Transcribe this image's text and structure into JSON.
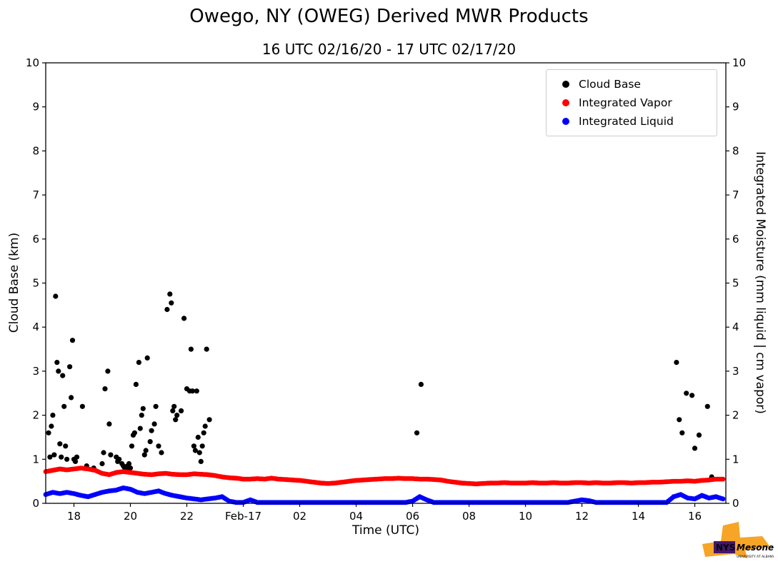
{
  "title": "Owego, NY (OWEG) Derived MWR Products",
  "subtitle": "16 UTC 02/16/20 - 17 UTC 02/17/20",
  "logo": {
    "nys": "NYS",
    "mesonet": "Mesonet",
    "tagline": "UNIVERSITY AT ALBANY",
    "orange": "#f6a01a",
    "purple": "#46166b"
  },
  "chart_data": {
    "type": "scatter",
    "title": "Owego, NY (OWEG) Derived MWR Products",
    "subtitle": "16 UTC 02/16/20 - 17 UTC 02/17/20",
    "xlabel": "Time (UTC)",
    "ylabel_left": "Cloud Base (km)",
    "ylabel_right": "Integrated Moisture (mm liquid | cm vapor)",
    "xlim": [
      17.0,
      41.1
    ],
    "ylim": [
      0,
      10
    ],
    "grid": false,
    "legend_position": "upper right",
    "xticks": [
      {
        "value": 18,
        "label": "18"
      },
      {
        "value": 20,
        "label": "20"
      },
      {
        "value": 22,
        "label": "22"
      },
      {
        "value": 24,
        "label": "Feb-17"
      },
      {
        "value": 26,
        "label": "02"
      },
      {
        "value": 28,
        "label": "04"
      },
      {
        "value": 30,
        "label": "06"
      },
      {
        "value": 32,
        "label": "08"
      },
      {
        "value": 34,
        "label": "10"
      },
      {
        "value": 36,
        "label": "12"
      },
      {
        "value": 38,
        "label": "14"
      },
      {
        "value": 40,
        "label": "16"
      }
    ],
    "yticks": [
      0,
      1,
      2,
      3,
      4,
      5,
      6,
      7,
      8,
      9,
      10
    ],
    "legend": [
      {
        "label": "Cloud Base",
        "color": "#000000"
      },
      {
        "label": "Integrated Vapor",
        "color": "#ff0000"
      },
      {
        "label": "Integrated Liquid",
        "color": "#0000ff"
      }
    ],
    "series": [
      {
        "name": "Cloud Base",
        "color": "#000000",
        "marker_px": 3.6,
        "dense": false,
        "points": [
          [
            17.1,
            1.6
          ],
          [
            17.15,
            1.05
          ],
          [
            17.2,
            1.75
          ],
          [
            17.25,
            2.0
          ],
          [
            17.3,
            1.1
          ],
          [
            17.35,
            4.7
          ],
          [
            17.4,
            3.2
          ],
          [
            17.45,
            3.0
          ],
          [
            17.5,
            1.35
          ],
          [
            17.55,
            1.05
          ],
          [
            17.6,
            2.9
          ],
          [
            17.65,
            2.2
          ],
          [
            17.7,
            1.3
          ],
          [
            17.75,
            1.0
          ],
          [
            17.85,
            3.1
          ],
          [
            17.9,
            2.4
          ],
          [
            17.95,
            3.7
          ],
          [
            18.0,
            1.0
          ],
          [
            18.05,
            0.95
          ],
          [
            18.1,
            1.05
          ],
          [
            18.3,
            2.2
          ],
          [
            18.45,
            0.85
          ],
          [
            18.7,
            0.8
          ],
          [
            19.0,
            0.9
          ],
          [
            19.05,
            1.15
          ],
          [
            19.1,
            2.6
          ],
          [
            19.2,
            3.0
          ],
          [
            19.25,
            1.8
          ],
          [
            19.3,
            1.1
          ],
          [
            19.5,
            1.05
          ],
          [
            19.55,
            0.95
          ],
          [
            19.6,
            1.0
          ],
          [
            19.7,
            0.9
          ],
          [
            19.75,
            0.85
          ],
          [
            19.8,
            0.8
          ],
          [
            19.85,
            0.75
          ],
          [
            19.9,
            0.85
          ],
          [
            19.95,
            0.9
          ],
          [
            20.0,
            0.8
          ],
          [
            20.05,
            1.3
          ],
          [
            20.1,
            1.55
          ],
          [
            20.15,
            1.6
          ],
          [
            20.2,
            2.7
          ],
          [
            20.3,
            3.2
          ],
          [
            20.35,
            1.7
          ],
          [
            20.4,
            2.0
          ],
          [
            20.45,
            2.15
          ],
          [
            20.5,
            1.1
          ],
          [
            20.55,
            1.2
          ],
          [
            20.6,
            3.3
          ],
          [
            20.7,
            1.4
          ],
          [
            20.75,
            1.65
          ],
          [
            20.85,
            1.8
          ],
          [
            20.9,
            2.2
          ],
          [
            21.0,
            1.3
          ],
          [
            21.1,
            1.15
          ],
          [
            21.3,
            4.4
          ],
          [
            21.4,
            4.75
          ],
          [
            21.45,
            4.55
          ],
          [
            21.5,
            2.1
          ],
          [
            21.55,
            2.2
          ],
          [
            21.6,
            1.9
          ],
          [
            21.65,
            2.0
          ],
          [
            21.8,
            2.1
          ],
          [
            21.9,
            4.2
          ],
          [
            22.0,
            2.6
          ],
          [
            22.1,
            2.55
          ],
          [
            22.15,
            3.5
          ],
          [
            22.2,
            2.55
          ],
          [
            22.25,
            1.3
          ],
          [
            22.3,
            1.2
          ],
          [
            22.35,
            2.55
          ],
          [
            22.4,
            1.5
          ],
          [
            22.45,
            1.15
          ],
          [
            22.5,
            0.95
          ],
          [
            22.55,
            1.3
          ],
          [
            22.6,
            1.6
          ],
          [
            22.65,
            1.75
          ],
          [
            22.7,
            3.5
          ],
          [
            22.8,
            1.9
          ],
          [
            30.15,
            1.6
          ],
          [
            30.3,
            2.7
          ],
          [
            39.35,
            3.2
          ],
          [
            39.45,
            1.9
          ],
          [
            39.55,
            1.6
          ],
          [
            39.7,
            2.5
          ],
          [
            39.9,
            2.45
          ],
          [
            40.0,
            1.25
          ],
          [
            40.15,
            1.55
          ],
          [
            40.45,
            2.2
          ],
          [
            40.6,
            0.6
          ]
        ]
      },
      {
        "name": "Integrated Vapor",
        "color": "#ff0000",
        "marker_px": 3.4,
        "dense": true,
        "points": [
          [
            17.0,
            0.72
          ],
          [
            17.25,
            0.75
          ],
          [
            17.5,
            0.78
          ],
          [
            17.75,
            0.76
          ],
          [
            18.0,
            0.78
          ],
          [
            18.25,
            0.8
          ],
          [
            18.5,
            0.78
          ],
          [
            18.75,
            0.75
          ],
          [
            19.0,
            0.68
          ],
          [
            19.25,
            0.65
          ],
          [
            19.5,
            0.7
          ],
          [
            19.75,
            0.72
          ],
          [
            20.0,
            0.7
          ],
          [
            20.25,
            0.68
          ],
          [
            20.5,
            0.66
          ],
          [
            20.75,
            0.65
          ],
          [
            21.0,
            0.67
          ],
          [
            21.25,
            0.68
          ],
          [
            21.5,
            0.66
          ],
          [
            21.75,
            0.65
          ],
          [
            22.0,
            0.65
          ],
          [
            22.25,
            0.67
          ],
          [
            22.5,
            0.66
          ],
          [
            22.75,
            0.65
          ],
          [
            23.0,
            0.63
          ],
          [
            23.25,
            0.6
          ],
          [
            23.5,
            0.58
          ],
          [
            23.75,
            0.57
          ],
          [
            24.0,
            0.55
          ],
          [
            24.25,
            0.55
          ],
          [
            24.5,
            0.56
          ],
          [
            24.75,
            0.55
          ],
          [
            25.0,
            0.57
          ],
          [
            25.25,
            0.55
          ],
          [
            25.5,
            0.54
          ],
          [
            25.75,
            0.53
          ],
          [
            26.0,
            0.52
          ],
          [
            26.25,
            0.5
          ],
          [
            26.5,
            0.48
          ],
          [
            26.75,
            0.46
          ],
          [
            27.0,
            0.45
          ],
          [
            27.25,
            0.46
          ],
          [
            27.5,
            0.48
          ],
          [
            27.75,
            0.5
          ],
          [
            28.0,
            0.52
          ],
          [
            28.25,
            0.53
          ],
          [
            28.5,
            0.54
          ],
          [
            28.75,
            0.55
          ],
          [
            29.0,
            0.56
          ],
          [
            29.25,
            0.56
          ],
          [
            29.5,
            0.57
          ],
          [
            29.75,
            0.56
          ],
          [
            30.0,
            0.56
          ],
          [
            30.25,
            0.55
          ],
          [
            30.5,
            0.55
          ],
          [
            30.75,
            0.54
          ],
          [
            31.0,
            0.53
          ],
          [
            31.25,
            0.5
          ],
          [
            31.5,
            0.48
          ],
          [
            31.75,
            0.46
          ],
          [
            32.0,
            0.45
          ],
          [
            32.25,
            0.44
          ],
          [
            32.5,
            0.45
          ],
          [
            32.75,
            0.46
          ],
          [
            33.0,
            0.46
          ],
          [
            33.25,
            0.47
          ],
          [
            33.5,
            0.46
          ],
          [
            33.75,
            0.46
          ],
          [
            34.0,
            0.46
          ],
          [
            34.25,
            0.47
          ],
          [
            34.5,
            0.46
          ],
          [
            34.75,
            0.46
          ],
          [
            35.0,
            0.47
          ],
          [
            35.25,
            0.46
          ],
          [
            35.5,
            0.46
          ],
          [
            35.75,
            0.47
          ],
          [
            36.0,
            0.47
          ],
          [
            36.25,
            0.46
          ],
          [
            36.5,
            0.47
          ],
          [
            36.75,
            0.46
          ],
          [
            37.0,
            0.46
          ],
          [
            37.25,
            0.47
          ],
          [
            37.5,
            0.47
          ],
          [
            37.75,
            0.46
          ],
          [
            38.0,
            0.47
          ],
          [
            38.25,
            0.47
          ],
          [
            38.5,
            0.48
          ],
          [
            38.75,
            0.48
          ],
          [
            39.0,
            0.49
          ],
          [
            39.25,
            0.5
          ],
          [
            39.5,
            0.5
          ],
          [
            39.75,
            0.51
          ],
          [
            40.0,
            0.5
          ],
          [
            40.25,
            0.52
          ],
          [
            40.5,
            0.53
          ],
          [
            40.75,
            0.55
          ],
          [
            41.0,
            0.55
          ]
        ]
      },
      {
        "name": "Integrated Liquid",
        "color": "#0000ff",
        "marker_px": 3.4,
        "dense": true,
        "points": [
          [
            17.0,
            0.2
          ],
          [
            17.25,
            0.25
          ],
          [
            17.5,
            0.22
          ],
          [
            17.75,
            0.25
          ],
          [
            18.0,
            0.22
          ],
          [
            18.25,
            0.18
          ],
          [
            18.5,
            0.15
          ],
          [
            18.75,
            0.2
          ],
          [
            19.0,
            0.25
          ],
          [
            19.25,
            0.28
          ],
          [
            19.5,
            0.3
          ],
          [
            19.75,
            0.35
          ],
          [
            20.0,
            0.32
          ],
          [
            20.25,
            0.25
          ],
          [
            20.5,
            0.22
          ],
          [
            20.75,
            0.25
          ],
          [
            21.0,
            0.28
          ],
          [
            21.25,
            0.22
          ],
          [
            21.5,
            0.18
          ],
          [
            21.75,
            0.15
          ],
          [
            22.0,
            0.12
          ],
          [
            22.25,
            0.1
          ],
          [
            22.5,
            0.08
          ],
          [
            22.75,
            0.1
          ],
          [
            23.0,
            0.12
          ],
          [
            23.25,
            0.15
          ],
          [
            23.5,
            0.05
          ],
          [
            23.75,
            0.02
          ],
          [
            24.0,
            0.02
          ],
          [
            24.25,
            0.08
          ],
          [
            24.5,
            0.02
          ],
          [
            24.75,
            0.02
          ],
          [
            25.0,
            0.02
          ],
          [
            25.25,
            0.02
          ],
          [
            25.5,
            0.02
          ],
          [
            25.75,
            0.02
          ],
          [
            26.0,
            0.02
          ],
          [
            26.25,
            0.02
          ],
          [
            26.5,
            0.02
          ],
          [
            26.75,
            0.02
          ],
          [
            27.0,
            0.02
          ],
          [
            27.25,
            0.02
          ],
          [
            27.5,
            0.02
          ],
          [
            27.75,
            0.02
          ],
          [
            28.0,
            0.02
          ],
          [
            28.25,
            0.02
          ],
          [
            28.5,
            0.02
          ],
          [
            28.75,
            0.02
          ],
          [
            29.0,
            0.02
          ],
          [
            29.25,
            0.02
          ],
          [
            29.5,
            0.02
          ],
          [
            29.75,
            0.02
          ],
          [
            30.0,
            0.05
          ],
          [
            30.25,
            0.15
          ],
          [
            30.5,
            0.08
          ],
          [
            30.75,
            0.02
          ],
          [
            31.0,
            0.02
          ],
          [
            31.25,
            0.02
          ],
          [
            31.5,
            0.02
          ],
          [
            31.75,
            0.02
          ],
          [
            32.0,
            0.02
          ],
          [
            32.25,
            0.02
          ],
          [
            32.5,
            0.02
          ],
          [
            32.75,
            0.02
          ],
          [
            33.0,
            0.02
          ],
          [
            33.25,
            0.02
          ],
          [
            33.5,
            0.02
          ],
          [
            33.75,
            0.02
          ],
          [
            34.0,
            0.02
          ],
          [
            34.25,
            0.02
          ],
          [
            34.5,
            0.02
          ],
          [
            34.75,
            0.02
          ],
          [
            35.0,
            0.02
          ],
          [
            35.25,
            0.02
          ],
          [
            35.5,
            0.02
          ],
          [
            35.75,
            0.05
          ],
          [
            36.0,
            0.08
          ],
          [
            36.25,
            0.06
          ],
          [
            36.5,
            0.02
          ],
          [
            36.75,
            0.02
          ],
          [
            37.0,
            0.02
          ],
          [
            37.25,
            0.02
          ],
          [
            37.5,
            0.02
          ],
          [
            37.75,
            0.02
          ],
          [
            38.0,
            0.02
          ],
          [
            38.25,
            0.02
          ],
          [
            38.5,
            0.02
          ],
          [
            38.75,
            0.02
          ],
          [
            39.0,
            0.02
          ],
          [
            39.25,
            0.15
          ],
          [
            39.5,
            0.2
          ],
          [
            39.75,
            0.12
          ],
          [
            40.0,
            0.1
          ],
          [
            40.25,
            0.18
          ],
          [
            40.5,
            0.12
          ],
          [
            40.75,
            0.15
          ],
          [
            41.0,
            0.1
          ]
        ]
      }
    ]
  }
}
